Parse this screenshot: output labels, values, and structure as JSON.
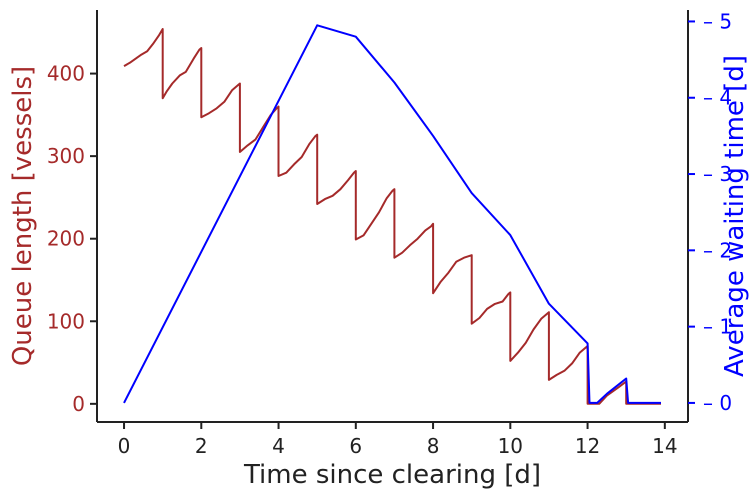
{
  "chart_data": {
    "type": "line",
    "xlabel": "Time since clearing [d]",
    "ylabel_left": "Queue length [vessels]",
    "ylabel_right": "Average waiting time [d]",
    "xlim": [
      -0.7,
      14.6
    ],
    "ylim_left": [
      -22,
      477
    ],
    "ylim_right": [
      -0.25,
      5.15
    ],
    "xticks": [
      0,
      2,
      4,
      6,
      8,
      10,
      12,
      14
    ],
    "yticks_left": [
      0,
      100,
      200,
      300,
      400
    ],
    "yticks_right": [
      0,
      1,
      2,
      3,
      4,
      5
    ],
    "grid": false,
    "colors": {
      "left": "#a52a2a",
      "right": "#0000ff",
      "axis": "#222222"
    },
    "series": [
      {
        "axis": "left",
        "points": [
          [
            0,
            409
          ],
          [
            0.15,
            413
          ],
          [
            0.3,
            418
          ],
          [
            0.45,
            423
          ],
          [
            0.6,
            427
          ],
          [
            0.75,
            436
          ],
          [
            0.9,
            446
          ],
          [
            1.0,
            454
          ],
          [
            1.0,
            370
          ],
          [
            1.1,
            378
          ],
          [
            1.25,
            388
          ],
          [
            1.45,
            398
          ],
          [
            1.6,
            402
          ],
          [
            1.8,
            418
          ],
          [
            1.95,
            429
          ],
          [
            2.0,
            431
          ],
          [
            2.0,
            347
          ],
          [
            2.2,
            352
          ],
          [
            2.4,
            358
          ],
          [
            2.6,
            366
          ],
          [
            2.8,
            380
          ],
          [
            2.95,
            386
          ],
          [
            3.0,
            388
          ],
          [
            3.0,
            305
          ],
          [
            3.2,
            313
          ],
          [
            3.4,
            320
          ],
          [
            3.6,
            335
          ],
          [
            3.8,
            350
          ],
          [
            3.95,
            358
          ],
          [
            4.0,
            360
          ],
          [
            4.0,
            276
          ],
          [
            4.2,
            280
          ],
          [
            4.4,
            290
          ],
          [
            4.6,
            299
          ],
          [
            4.8,
            315
          ],
          [
            4.95,
            324
          ],
          [
            5.0,
            326
          ],
          [
            5.0,
            242
          ],
          [
            5.2,
            248
          ],
          [
            5.4,
            252
          ],
          [
            5.6,
            260
          ],
          [
            5.8,
            271
          ],
          [
            5.95,
            280
          ],
          [
            6.0,
            282
          ],
          [
            6.0,
            199
          ],
          [
            6.2,
            204
          ],
          [
            6.4,
            218
          ],
          [
            6.6,
            232
          ],
          [
            6.8,
            249
          ],
          [
            6.95,
            258
          ],
          [
            7.0,
            260
          ],
          [
            7.0,
            177
          ],
          [
            7.2,
            183
          ],
          [
            7.4,
            192
          ],
          [
            7.6,
            200
          ],
          [
            7.8,
            210
          ],
          [
            7.95,
            215
          ],
          [
            8.0,
            218
          ],
          [
            8.0,
            134
          ],
          [
            8.2,
            148
          ],
          [
            8.4,
            159
          ],
          [
            8.6,
            172
          ],
          [
            8.8,
            177
          ],
          [
            9.0,
            180
          ],
          [
            9.0,
            97
          ],
          [
            9.2,
            104
          ],
          [
            9.4,
            115
          ],
          [
            9.6,
            121
          ],
          [
            9.8,
            124
          ],
          [
            9.95,
            133
          ],
          [
            10.0,
            135
          ],
          [
            10.0,
            52
          ],
          [
            10.2,
            62
          ],
          [
            10.4,
            74
          ],
          [
            10.6,
            90
          ],
          [
            10.8,
            103
          ],
          [
            11.0,
            111
          ],
          [
            11.0,
            29
          ],
          [
            11.2,
            35
          ],
          [
            11.4,
            40
          ],
          [
            11.6,
            49
          ],
          [
            11.8,
            62
          ],
          [
            12.0,
            70
          ],
          [
            12.0,
            0
          ],
          [
            12.3,
            0
          ],
          [
            12.5,
            10
          ],
          [
            12.8,
            20
          ],
          [
            13.0,
            27
          ],
          [
            13.0,
            0
          ],
          [
            13.9,
            0
          ]
        ]
      },
      {
        "axis": "right",
        "points": [
          [
            0,
            0
          ],
          [
            5.0,
            4.95
          ],
          [
            6.0,
            4.8
          ],
          [
            7.0,
            4.2
          ],
          [
            8.0,
            3.5
          ],
          [
            9.0,
            2.75
          ],
          [
            10.0,
            2.2
          ],
          [
            11.0,
            1.3
          ],
          [
            12.0,
            0.78
          ],
          [
            12.05,
            0
          ],
          [
            12.25,
            0
          ],
          [
            12.5,
            0.12
          ],
          [
            13.0,
            0.32
          ],
          [
            13.05,
            0
          ],
          [
            13.9,
            0
          ]
        ]
      }
    ]
  }
}
